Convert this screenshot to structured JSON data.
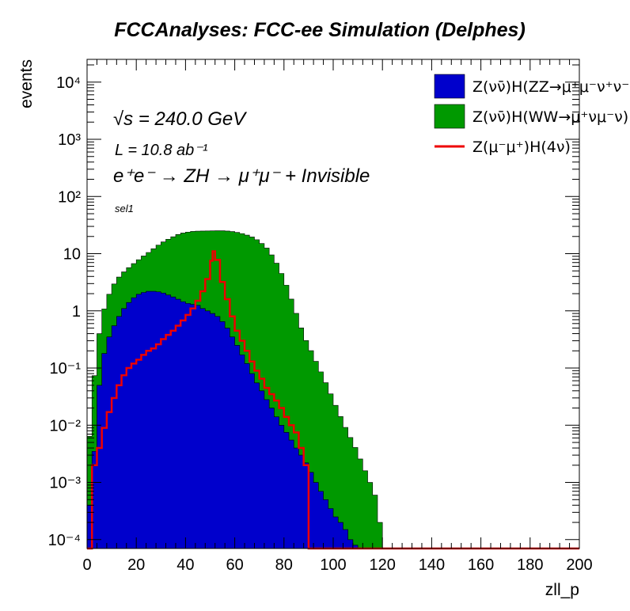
{
  "title": "FCCAnalyses: FCC-ee Simulation (Delphes)",
  "annotations": {
    "energy": "√s = 240.0 GeV",
    "lumi": "L = 10.8 ab⁻¹",
    "process": "e⁺e⁻ → ZH → μ⁺μ⁻ + Invisible",
    "selection": "sel1"
  },
  "legend": [
    {
      "label": "Z(νν̄)H(ZZ→μ⁺μ⁻ν⁺ν⁻)",
      "color": "#0000cc",
      "style": "fill"
    },
    {
      "label": "Z(νν̄)H(WW→μ⁺νμ⁻ν)",
      "color": "#009900",
      "style": "fill"
    },
    {
      "label": "Z(μ⁻μ⁺)H(4ν)",
      "color": "#ee0000",
      "style": "line"
    }
  ],
  "chart_data": {
    "type": "area",
    "title": "FCCAnalyses: FCC-ee Simulation (Delphes)",
    "xlabel": "zll_p",
    "ylabel": "events",
    "xlim": [
      0,
      200
    ],
    "ylim": [
      7e-05,
      25000
    ],
    "yscale": "log",
    "grid": false,
    "legend_position": "top-right",
    "x_ticks": [
      "0",
      "20",
      "40",
      "60",
      "80",
      "100",
      "120",
      "140",
      "160",
      "180",
      "200"
    ],
    "y_ticks": [
      {
        "value": 0.0001,
        "label": "10⁻⁴"
      },
      {
        "value": 0.001,
        "label": "10⁻³"
      },
      {
        "value": 0.01,
        "label": "10⁻²"
      },
      {
        "value": 0.1,
        "label": "10⁻¹"
      },
      {
        "value": 1,
        "label": "1"
      },
      {
        "value": 10,
        "label": "10"
      },
      {
        "value": 100,
        "label": "10²"
      },
      {
        "value": 1000,
        "label": "10³"
      },
      {
        "value": 10000,
        "label": "10⁴"
      }
    ],
    "stacked": true,
    "series": [
      {
        "name": "Z(νν̄)H(ZZ→μ⁺μ⁻ν⁺ν⁻)",
        "color": "#0000cc",
        "x": [
          0,
          2,
          4,
          6,
          8,
          10,
          12,
          14,
          16,
          18,
          20,
          22,
          24,
          26,
          28,
          30,
          32,
          34,
          36,
          38,
          40,
          42,
          44,
          46,
          48,
          50,
          52,
          54,
          56,
          58,
          60,
          62,
          64,
          66,
          68,
          70,
          72,
          74,
          76,
          78,
          80,
          82,
          84,
          86,
          88,
          90,
          92,
          94,
          96,
          98,
          100,
          102,
          104,
          106,
          108,
          110
        ],
        "values": [
          0.0004,
          0.0035,
          0.05,
          0.18,
          0.35,
          0.55,
          0.8,
          1.1,
          1.4,
          1.7,
          1.95,
          2.1,
          2.2,
          2.2,
          2.15,
          2.05,
          1.9,
          1.75,
          1.6,
          1.45,
          1.35,
          1.3,
          1.25,
          1.1,
          1.0,
          0.9,
          0.8,
          0.65,
          0.5,
          0.35,
          0.25,
          0.17,
          0.12,
          0.08,
          0.055,
          0.04,
          0.028,
          0.02,
          0.014,
          0.01,
          0.0075,
          0.0055,
          0.004,
          0.003,
          0.0022,
          0.0015,
          0.001,
          0.0007,
          0.0005,
          0.00035,
          0.00025,
          0.0002,
          0.00015,
          0.0001,
          8e-05,
          7e-05
        ]
      },
      {
        "name": "Z(νν̄)H(WW→μ⁺νμ⁻ν)",
        "color": "#009900",
        "x": [
          0,
          2,
          4,
          6,
          8,
          10,
          12,
          14,
          16,
          18,
          20,
          22,
          24,
          26,
          28,
          30,
          32,
          34,
          36,
          38,
          40,
          42,
          44,
          46,
          48,
          50,
          52,
          54,
          56,
          58,
          60,
          62,
          64,
          66,
          68,
          70,
          72,
          74,
          76,
          78,
          80,
          82,
          84,
          86,
          88,
          90,
          92,
          94,
          96,
          98,
          100,
          102,
          104,
          106,
          108,
          110,
          112,
          114,
          116,
          118
        ],
        "values": [
          0.006,
          0.07,
          0.35,
          0.9,
          1.6,
          2.4,
          3.1,
          3.7,
          4.3,
          5.0,
          5.9,
          7.0,
          8.3,
          10.0,
          12.0,
          14.0,
          16.0,
          18.0,
          20.0,
          21.5,
          22.5,
          23.2,
          23.5,
          23.8,
          24.0,
          24.2,
          24.4,
          24.5,
          24.4,
          24.0,
          23.3,
          22.3,
          21.0,
          19.5,
          17.5,
          15.0,
          12.5,
          9.5,
          6.8,
          4.5,
          2.8,
          1.6,
          0.9,
          0.5,
          0.3,
          0.2,
          0.13,
          0.085,
          0.055,
          0.035,
          0.022,
          0.014,
          0.009,
          0.006,
          0.004,
          0.0025,
          0.0016,
          0.001,
          0.0006,
          0.0002
        ]
      },
      {
        "name": "Z(μ⁻μ⁺)H(4ν)",
        "color": "#ee0000",
        "style": "line",
        "x": [
          0,
          2,
          4,
          6,
          8,
          10,
          12,
          14,
          16,
          18,
          20,
          22,
          24,
          26,
          28,
          30,
          32,
          34,
          36,
          38,
          40,
          42,
          44,
          46,
          48,
          50,
          51,
          52,
          54,
          56,
          58,
          60,
          62,
          64,
          66,
          68,
          70,
          72,
          74,
          76,
          78,
          80,
          82,
          84,
          86,
          88,
          90,
          200
        ],
        "values": [
          5e-05,
          0.002,
          0.004,
          0.009,
          0.017,
          0.03,
          0.05,
          0.075,
          0.1,
          0.12,
          0.14,
          0.17,
          0.2,
          0.22,
          0.26,
          0.32,
          0.38,
          0.45,
          0.55,
          0.68,
          0.85,
          1.1,
          1.5,
          2.2,
          3.6,
          7.5,
          11.0,
          7.8,
          3.2,
          1.6,
          0.8,
          0.45,
          0.3,
          0.2,
          0.13,
          0.09,
          0.065,
          0.045,
          0.035,
          0.027,
          0.02,
          0.014,
          0.01,
          0.0075,
          0.004,
          0.002,
          7e-05,
          7e-05
        ]
      }
    ]
  }
}
